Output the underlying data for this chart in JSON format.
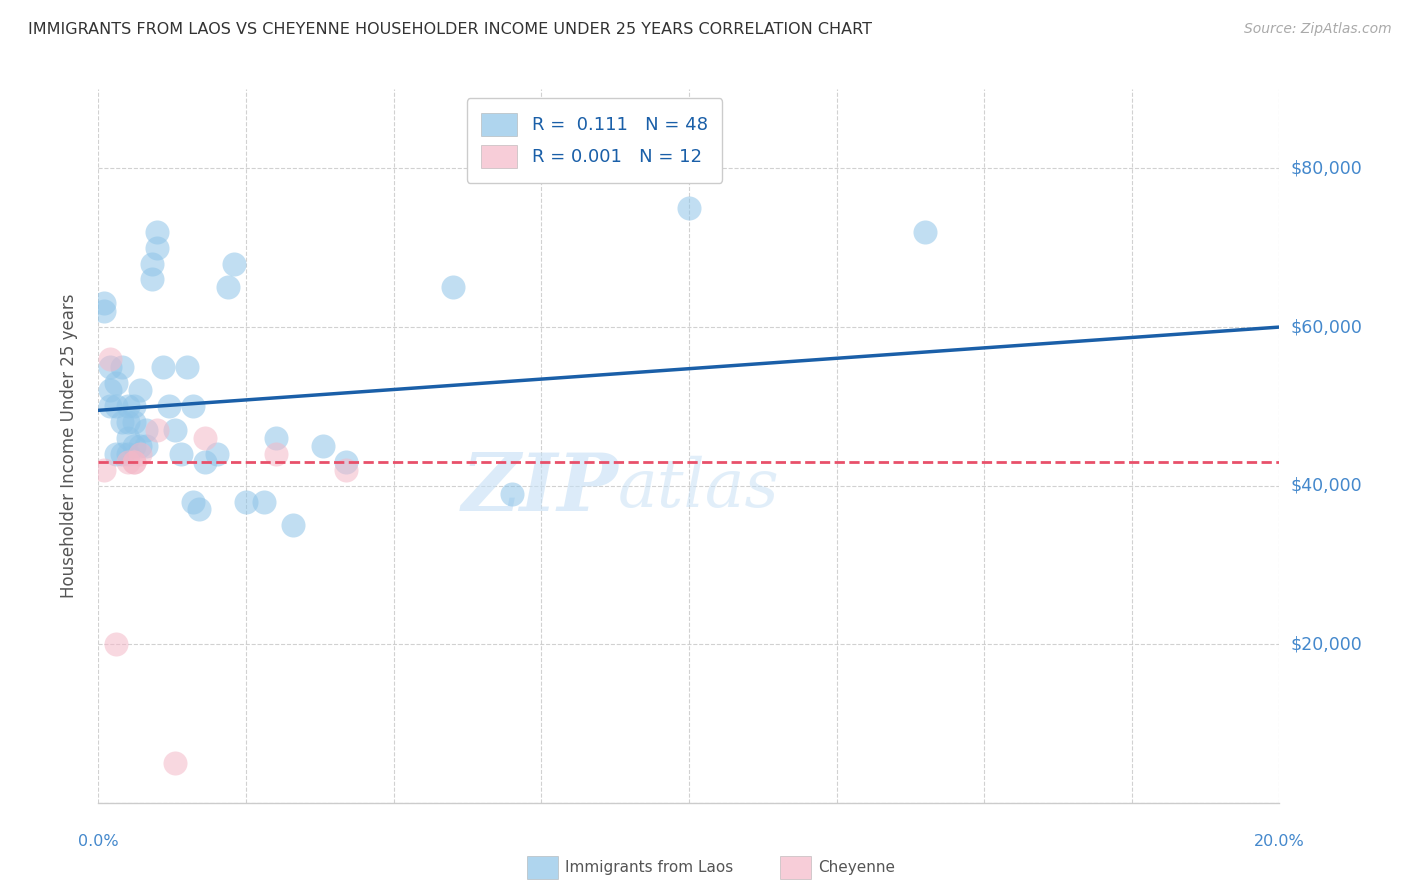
{
  "title": "IMMIGRANTS FROM LAOS VS CHEYENNE HOUSEHOLDER INCOME UNDER 25 YEARS CORRELATION CHART",
  "source": "Source: ZipAtlas.com",
  "ylabel": "Householder Income Under 25 years",
  "xlim": [
    0.0,
    0.2
  ],
  "ylim": [
    0,
    90000
  ],
  "yticks": [
    0,
    20000,
    40000,
    60000,
    80000
  ],
  "xticks": [
    0.0,
    0.025,
    0.05,
    0.075,
    0.1,
    0.125,
    0.15,
    0.175,
    0.2
  ],
  "watermark_zip": "ZIP",
  "watermark_atlas": "atlas",
  "blue_scatter_x": [
    0.001,
    0.002,
    0.002,
    0.003,
    0.003,
    0.004,
    0.004,
    0.005,
    0.005,
    0.005,
    0.006,
    0.006,
    0.006,
    0.007,
    0.007,
    0.008,
    0.008,
    0.009,
    0.009,
    0.01,
    0.01,
    0.011,
    0.012,
    0.013,
    0.014,
    0.015,
    0.016,
    0.016,
    0.017,
    0.018,
    0.02,
    0.022,
    0.023,
    0.025,
    0.028,
    0.03,
    0.033,
    0.038,
    0.042,
    0.06,
    0.07,
    0.1,
    0.14,
    0.001,
    0.003,
    0.004,
    0.005,
    0.002
  ],
  "blue_scatter_y": [
    62000,
    55000,
    52000,
    53000,
    50000,
    55000,
    48000,
    50000,
    48000,
    46000,
    50000,
    48000,
    45000,
    52000,
    45000,
    47000,
    45000,
    68000,
    66000,
    72000,
    70000,
    55000,
    50000,
    47000,
    44000,
    55000,
    50000,
    38000,
    37000,
    43000,
    44000,
    65000,
    68000,
    38000,
    38000,
    46000,
    35000,
    45000,
    43000,
    65000,
    39000,
    75000,
    72000,
    63000,
    44000,
    44000,
    44000,
    50000
  ],
  "pink_scatter_x": [
    0.001,
    0.002,
    0.003,
    0.005,
    0.006,
    0.006,
    0.007,
    0.01,
    0.013,
    0.018,
    0.03,
    0.042
  ],
  "pink_scatter_y": [
    42000,
    56000,
    20000,
    43000,
    43000,
    43000,
    44000,
    47000,
    5000,
    46000,
    44000,
    42000
  ],
  "blue_line_x": [
    0.0,
    0.2
  ],
  "blue_line_y": [
    49500,
    60000
  ],
  "pink_line_x": [
    0.0,
    0.2
  ],
  "pink_line_y": [
    43000,
    43000
  ],
  "blue_scatter_color": "#8ec4e8",
  "pink_scatter_color": "#f4b8c8",
  "blue_line_color": "#1a5fa8",
  "pink_line_color": "#e8506a",
  "right_label_color": "#4488cc",
  "title_color": "#333333",
  "grid_color": "#cccccc",
  "background_color": "#ffffff",
  "legend_text_color": "#1a5fa8",
  "bottom_legend_text_color": "#555555"
}
